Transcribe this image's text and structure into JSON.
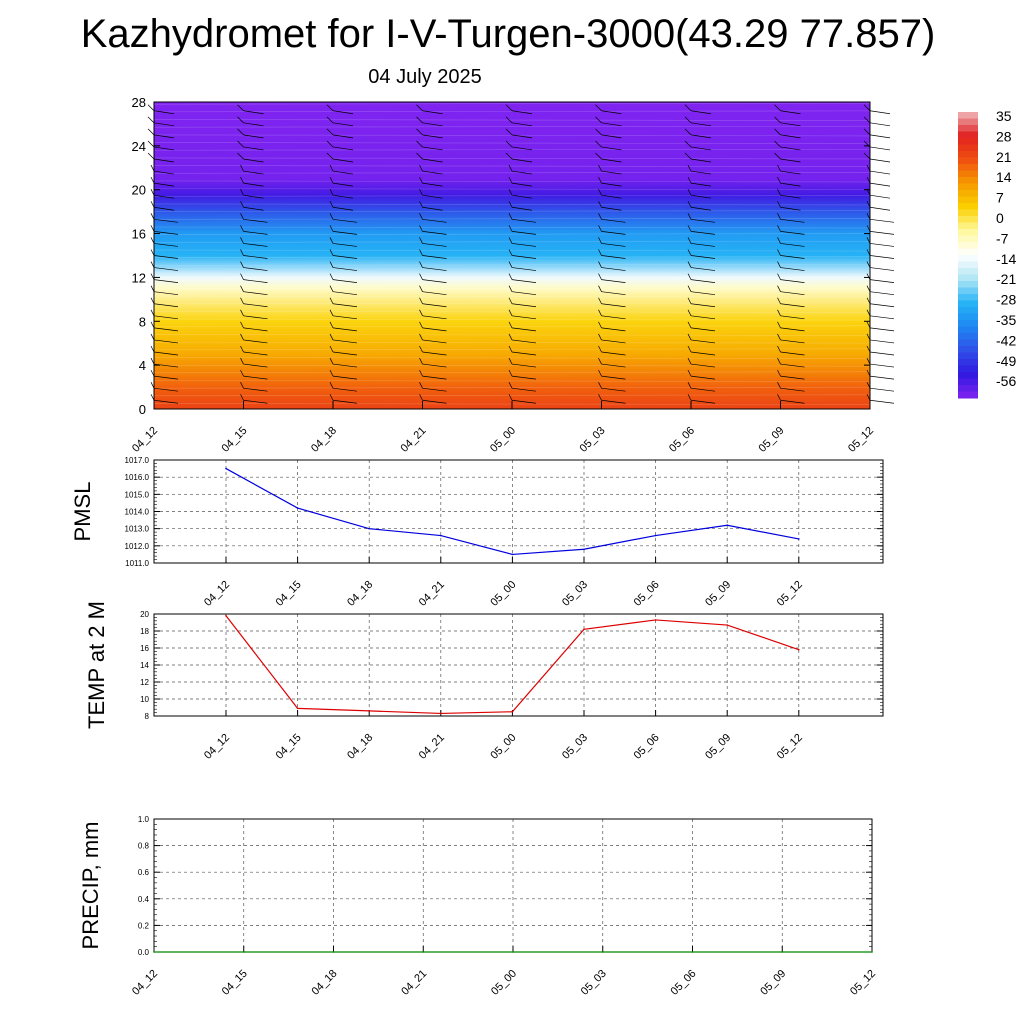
{
  "title": "Kazhydromet for I-V-Turgen-3000(43.29 77.857)",
  "subtitle": "04 July 2025",
  "colorbar": {
    "labels": [
      "35",
      "28",
      "21",
      "14",
      "7",
      "0",
      "-7",
      "-14",
      "-21",
      "-28",
      "-35",
      "-42",
      "-49",
      "-56"
    ],
    "stops": [
      "#f0b8bc",
      "#e02020",
      "#f05010",
      "#f59a00",
      "#fbd000",
      "#fff9a0",
      "#ffffff",
      "#b0e6f5",
      "#26b4f5",
      "#1e88f2",
      "#3050e8",
      "#3018e0",
      "#8024f0"
    ]
  },
  "chart_data": [
    {
      "type": "heatmap",
      "name": "temperature-profile",
      "x_labels": [
        "04_12",
        "04_15",
        "04_18",
        "04_21",
        "05_00",
        "05_03",
        "05_06",
        "05_09",
        "05_12"
      ],
      "y_ticks": [
        "0",
        "4",
        "8",
        "12",
        "16",
        "20",
        "24",
        "28"
      ],
      "ylim": [
        0,
        28
      ],
      "value_range": [
        -56,
        35
      ],
      "wind_barbs": true,
      "layers": [
        {
          "level": 0,
          "value": 22
        },
        {
          "level": 2,
          "value": 18
        },
        {
          "level": 5,
          "value": 10
        },
        {
          "level": 8,
          "value": 4
        },
        {
          "level": 11,
          "value": -6
        },
        {
          "level": 12,
          "value": -12
        },
        {
          "level": 14,
          "value": -26
        },
        {
          "level": 16,
          "value": -30
        },
        {
          "level": 18,
          "value": -40
        },
        {
          "level": 19.5,
          "value": -50
        },
        {
          "level": 21,
          "value": -55
        },
        {
          "level": 28,
          "value": -56
        }
      ]
    },
    {
      "type": "line",
      "ylabel": "PMSL",
      "x": [
        "04_12",
        "04_15",
        "04_18",
        "04_21",
        "05_00",
        "05_03",
        "05_06",
        "05_09",
        "05_12"
      ],
      "values": [
        1016.5,
        1014.2,
        1013.0,
        1012.6,
        1011.5,
        1011.8,
        1012.6,
        1013.2,
        1012.4
      ],
      "y_ticks": [
        "1011.0",
        "1012.0",
        "1013.0",
        "1014.0",
        "1015.0",
        "1016.0",
        "1017.0"
      ],
      "ylim": [
        1011,
        1017
      ],
      "color": "#0000dd",
      "grid": true
    },
    {
      "type": "line",
      "ylabel": "TEMP at 2 M",
      "x": [
        "04_12",
        "04_15",
        "04_18",
        "04_21",
        "05_00",
        "05_03",
        "05_06",
        "05_09",
        "05_12"
      ],
      "values": [
        19.8,
        8.9,
        8.6,
        8.3,
        8.5,
        18.2,
        19.3,
        18.7,
        15.8
      ],
      "y_ticks": [
        "8",
        "10",
        "12",
        "14",
        "16",
        "18",
        "20"
      ],
      "ylim": [
        8,
        20
      ],
      "color": "#dd0000",
      "grid": true
    },
    {
      "type": "line",
      "ylabel": "PRECIP, mm",
      "x": [
        "04_12",
        "04_15",
        "04_18",
        "04_21",
        "05_00",
        "05_03",
        "05_06",
        "05_09",
        "05_12"
      ],
      "values": [
        0,
        0,
        0,
        0,
        0,
        0,
        0,
        0,
        0
      ],
      "y_ticks": [
        "0.0",
        "0.2",
        "0.4",
        "0.6",
        "0.8",
        "1.0"
      ],
      "ylim": [
        0,
        1
      ],
      "color": "#008800",
      "grid": true
    }
  ]
}
